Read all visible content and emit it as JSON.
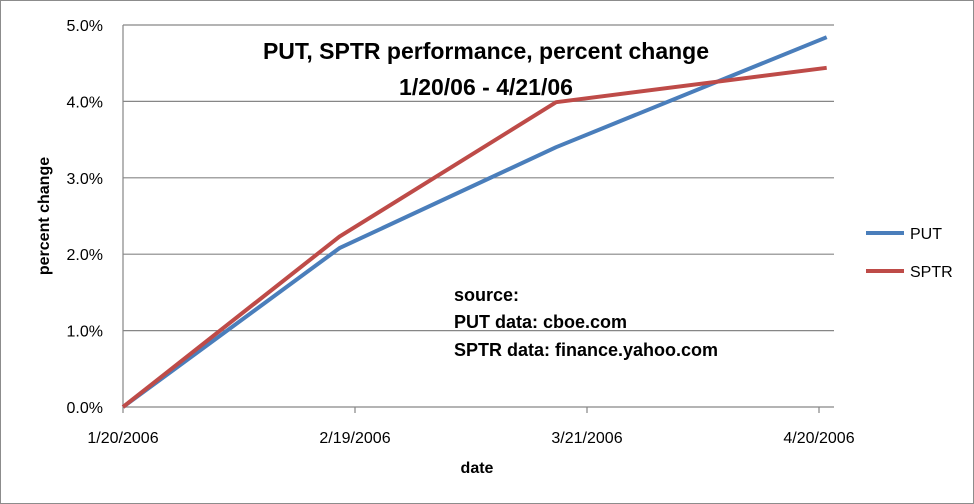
{
  "chart_data": {
    "type": "line",
    "title": "PUT, SPTR performance, percent change",
    "subtitle": "1/20/06 - 4/21/06",
    "xlabel": "date",
    "ylabel": "percent change",
    "x": [
      "2006-01-20",
      "2006-02-17",
      "2006-03-17",
      "2006-04-21"
    ],
    "x_ticks": [
      "1/20/2006",
      "2/19/2006",
      "3/21/2006",
      "4/20/2006"
    ],
    "y_ticks": [
      "0.0%",
      "1.0%",
      "2.0%",
      "3.0%",
      "4.0%",
      "5.0%"
    ],
    "ylim": [
      0,
      5
    ],
    "grid": true,
    "legend_position": "right",
    "series": [
      {
        "name": "PUT",
        "color": "#4a7ebb",
        "values": [
          0,
          2.08,
          3.4,
          4.84
        ]
      },
      {
        "name": "SPTR",
        "color": "#be4b48",
        "values": [
          0,
          2.23,
          3.99,
          4.44
        ]
      }
    ],
    "annotation": [
      "source:",
      "PUT data: cboe.com",
      "SPTR data:  finance.yahoo.com"
    ]
  }
}
